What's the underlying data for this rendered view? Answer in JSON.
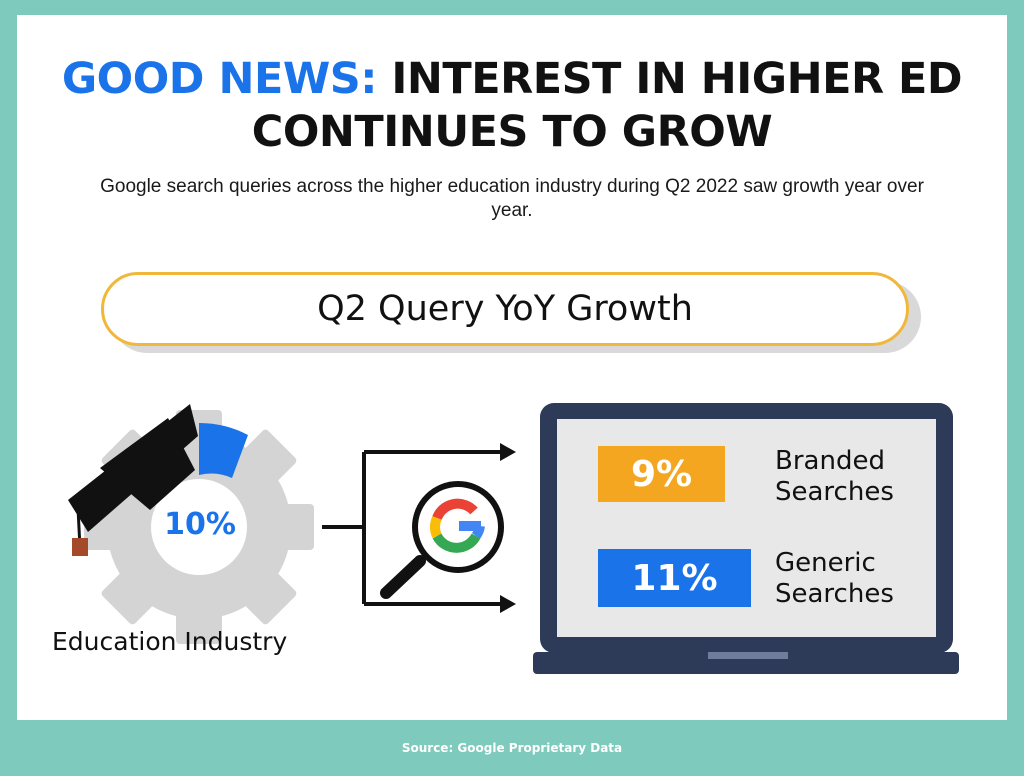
{
  "headline": {
    "accent": "GOOD NEWS:",
    "rest": "INTEREST IN HIGHER ED CONTINUES TO GROW"
  },
  "subtitle": "Google search queries across the higher education industry during Q2 2022 saw growth year over year.",
  "banner": "Q2 Query YoY Growth",
  "industry": {
    "value": "10%",
    "label": "Education Industry",
    "fill_fraction": 0.1
  },
  "stats": [
    {
      "value": "9%",
      "label_line1": "Branded",
      "label_line2": "Searches",
      "color": "#f4a621"
    },
    {
      "value": "11%",
      "label_line1": "Generic",
      "label_line2": "Searches",
      "color": "#1a73e8"
    }
  ],
  "icons": [
    "graduation-cap-icon",
    "gear-icon",
    "magnifier-icon",
    "google-g-icon",
    "laptop-icon",
    "arrow-icon"
  ],
  "source": "Source:  Google Proprietary Data",
  "colors": {
    "background": "#7ecbbd",
    "accent_blue": "#1a73e8",
    "accent_orange": "#f4a621",
    "pill_border": "#f1b73a",
    "gear": "#d4d4d4",
    "laptop_frame": "#2d3a58"
  }
}
